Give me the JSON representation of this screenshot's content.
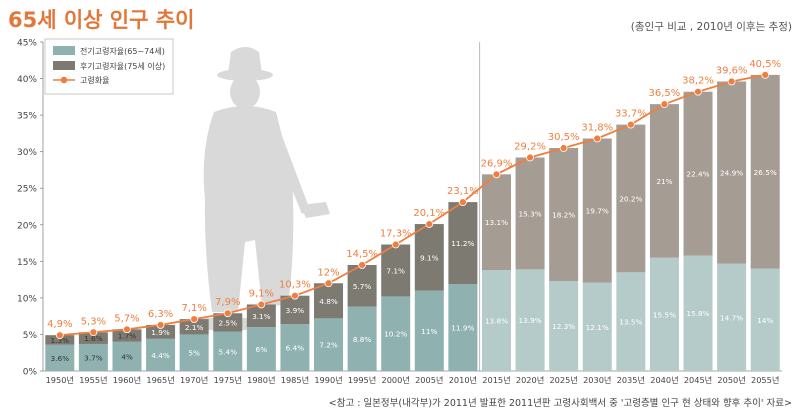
{
  "header": {
    "title": "65세 이상 인구 추이",
    "note": "(총인구 비교 , 2010년 이후는 추정)"
  },
  "footer": {
    "source": "<참고 : 일본정부(내각부)가 2011년 발표한 2011년판 고령사회백서 중 '고령층별 인구 현 상태와 향후 추이' 자료>"
  },
  "colors": {
    "early_elderly_actual": "#8fb2b0",
    "late_elderly_actual": "#7d7a72",
    "early_elderly_estimate": "#b5cbca",
    "late_elderly_estimate": "#a59c93",
    "aging_rate": "#ef7f3e",
    "silhouette": "#d9d9d9",
    "title": "#e2773a"
  },
  "chart_data": {
    "type": "bar",
    "stacked": true,
    "categories": [
      "1950년",
      "1955년",
      "1960년",
      "1965년",
      "1970년",
      "1975년",
      "1980년",
      "1985년",
      "1990년",
      "1995년",
      "2000년",
      "2005년",
      "2010년",
      "2015년",
      "2020년",
      "2025년",
      "2030년",
      "2035년",
      "2040년",
      "2045년",
      "2050년",
      "2055년"
    ],
    "series": [
      {
        "name": "전기고령자율(65~74세)",
        "values": [
          3.6,
          3.7,
          4,
          4.4,
          5,
          5.4,
          6,
          6.4,
          7.2,
          8.8,
          10.2,
          11,
          11.9,
          13.8,
          13.9,
          12.3,
          12.1,
          13.5,
          15.5,
          15.8,
          14.7,
          14
        ],
        "labels": [
          "3.6%",
          "3.7%",
          "4%",
          "4.4%",
          "5%",
          "5.4%",
          "6%",
          "6.4%",
          "7.2%",
          "8.8%",
          "10.2%",
          "11%",
          "11.9%",
          "13.8%",
          "13.9%",
          "12.3%",
          "12.1%",
          "13.5%",
          "15.5%",
          "15.8%",
          "14.7%",
          "14%"
        ]
      },
      {
        "name": "후기고령자율(75세 이상)",
        "values": [
          1.3,
          1.6,
          1.7,
          1.9,
          2.1,
          2.5,
          3.1,
          3.9,
          4.8,
          5.7,
          7.1,
          9.1,
          11.2,
          13.1,
          15.3,
          18.2,
          19.7,
          20.2,
          21,
          22.4,
          24.9,
          26.5
        ],
        "labels": [
          "1.3%",
          "1.6%",
          "1.7%",
          "1.9%",
          "2.1%",
          "2.5%",
          "3.1%",
          "3.9%",
          "4.8%",
          "5.7%",
          "7.1%",
          "9.1%",
          "11.2%",
          "13.1%",
          "15.3%",
          "18.2%",
          "19.7%",
          "20.2%",
          "21%",
          "22.4%",
          "24.9%",
          "26.5%"
        ]
      },
      {
        "name": "고령화율",
        "type": "line",
        "values": [
          4.9,
          5.3,
          5.7,
          6.3,
          7.1,
          7.9,
          9.1,
          10.3,
          12,
          14.5,
          17.3,
          20.1,
          23.1,
          26.9,
          29.2,
          30.5,
          31.8,
          33.7,
          36.5,
          38.2,
          39.6,
          40.5
        ],
        "labels": [
          "4,9%",
          "5,3%",
          "5,7%",
          "6,3%",
          "7,1%",
          "7,9%",
          "9,1%",
          "10,3%",
          "12%",
          "14,5%",
          "17,3%",
          "20,1%",
          "23,1%",
          "26,9%",
          "29,2%",
          "30,5%",
          "31,8%",
          "33,7%",
          "36,5%",
          "38,2%",
          "39,6%",
          "40,5%"
        ]
      }
    ],
    "ylim": [
      0,
      45
    ],
    "yticks": [
      "0%",
      "5%",
      "10%",
      "15%",
      "20%",
      "25%",
      "30%",
      "35%",
      "40%",
      "45%"
    ],
    "estimate_from_index": 13,
    "legend_position": "top-left",
    "grid": false
  }
}
